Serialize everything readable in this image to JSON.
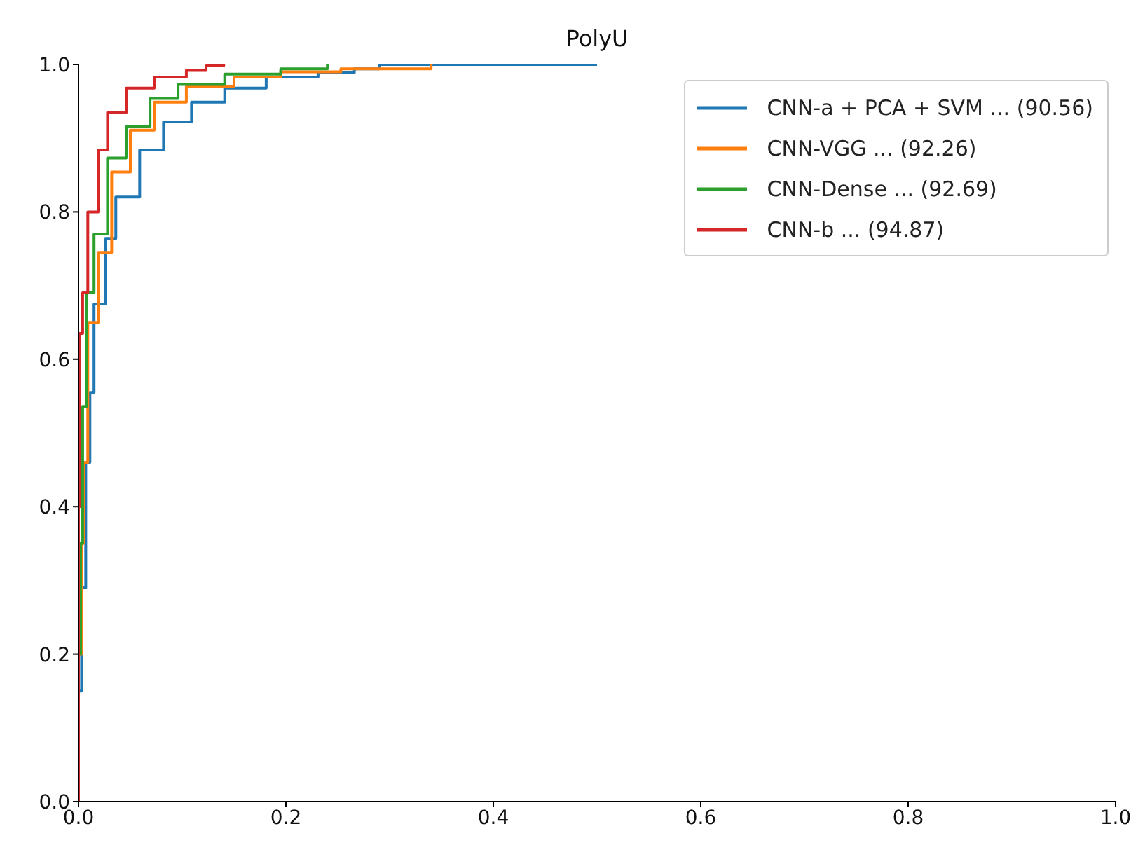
{
  "chart_data": {
    "type": "step",
    "title": "PolyU",
    "xlim": [
      0,
      1
    ],
    "ylim": [
      0,
      1
    ],
    "xticks": [
      {
        "value": 0,
        "label": "0.0"
      },
      0.2,
      0.4,
      0.6,
      0.8,
      {
        "value": 1,
        "label": "1.0"
      }
    ],
    "yticks": [
      {
        "value": 0,
        "label": "0.0"
      },
      0.2,
      0.4,
      0.6,
      0.8,
      {
        "value": 1,
        "label": "1.0"
      }
    ],
    "grid": false,
    "legend": "top right",
    "marker": "none",
    "line_style": "solid",
    "series": [
      {
        "name": "CNN-a + PCA + SVM ... (90.56)",
        "color": "#1f77b4",
        "x": [
          0,
          0,
          0.003,
          0.007,
          0.011,
          0.015,
          0.026,
          0.036,
          0.059,
          0.082,
          0.109,
          0.141,
          0.181,
          0.231,
          0.266,
          0.29,
          0.5
        ],
        "values": [
          0,
          0.15,
          0.29,
          0.46,
          0.555,
          0.675,
          0.764,
          0.82,
          0.884,
          0.922,
          0.949,
          0.968,
          0.983,
          0.989,
          0.994,
          1,
          1
        ]
      },
      {
        "name": "CNN-VGG ... (92.26)",
        "color": "#ff7f0e",
        "x": [
          0,
          0,
          0.003,
          0.005,
          0.009,
          0.019,
          0.032,
          0.05,
          0.073,
          0.104,
          0.15,
          0.195,
          0.253,
          0.34
        ],
        "values": [
          0,
          0.2,
          0.35,
          0.46,
          0.65,
          0.745,
          0.854,
          0.911,
          0.949,
          0.97,
          0.983,
          0.99,
          0.994,
          1
        ]
      },
      {
        "name": "CNN-Dense ... (92.69)",
        "color": "#2ca02c",
        "x": [
          0,
          0,
          0.002,
          0.004,
          0.008,
          0.015,
          0.028,
          0.046,
          0.069,
          0.096,
          0.141,
          0.195,
          0.24
        ],
        "values": [
          0,
          0.2,
          0.35,
          0.536,
          0.69,
          0.77,
          0.873,
          0.916,
          0.954,
          0.973,
          0.987,
          0.994,
          1
        ]
      },
      {
        "name": "CNN-b ... (94.87)",
        "color": "#d62728",
        "x": [
          0,
          0,
          0.001,
          0.004,
          0.009,
          0.019,
          0.028,
          0.046,
          0.073,
          0.104,
          0.123,
          0.14
        ],
        "values": [
          0,
          0.4,
          0.635,
          0.69,
          0.8,
          0.884,
          0.935,
          0.968,
          0.983,
          0.992,
          0.998,
          1
        ]
      }
    ]
  }
}
